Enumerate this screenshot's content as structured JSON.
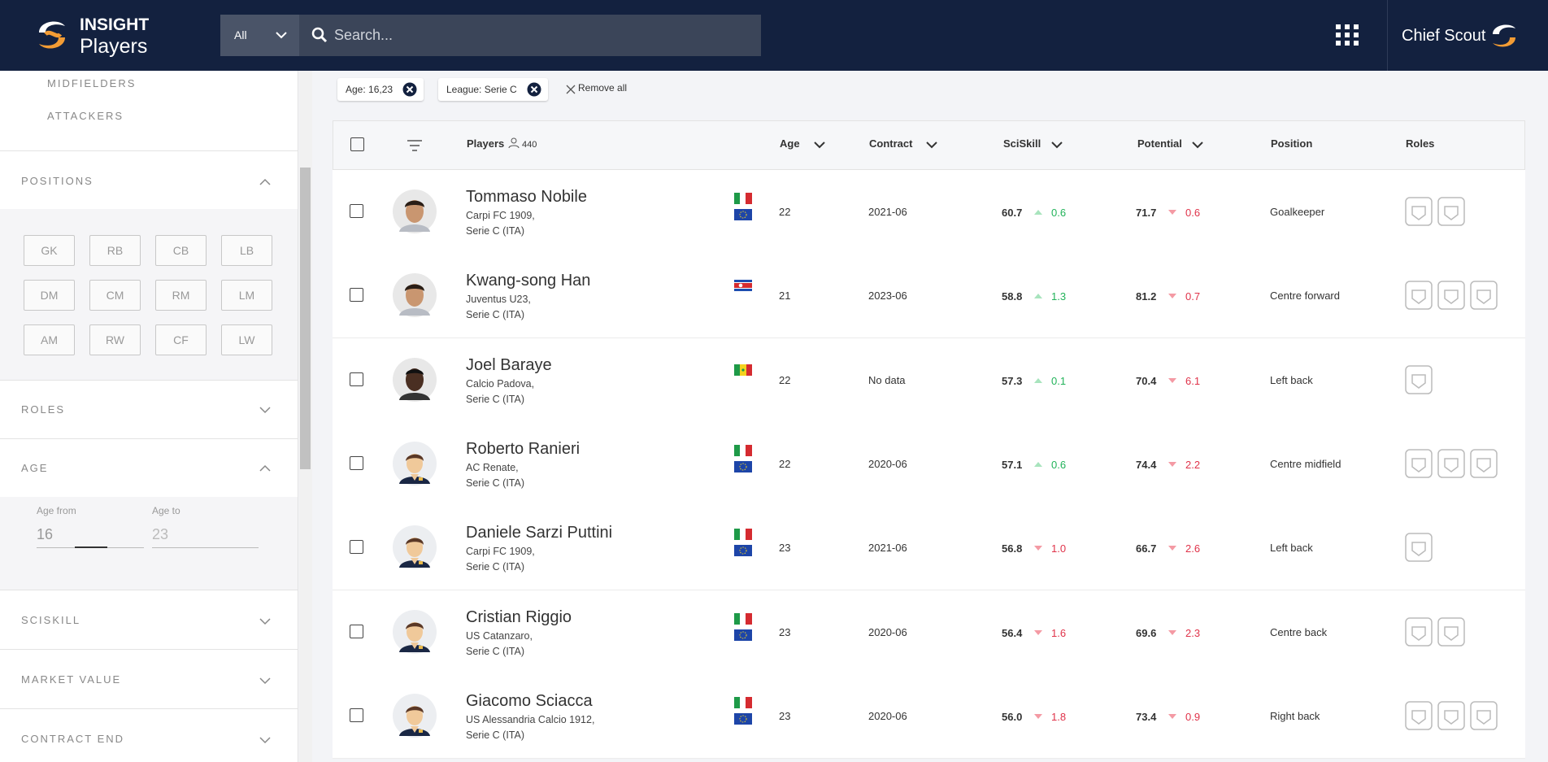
{
  "header": {
    "brand": "INSIGHT",
    "product": "Players",
    "scope": "All",
    "search_placeholder": "Search...",
    "user": "Chief Scout"
  },
  "sidebar": {
    "items": [
      "MIDFIELDERS",
      "ATTACKERS"
    ],
    "positions": {
      "title": "POSITIONS",
      "buttons": [
        "GK",
        "RB",
        "CB",
        "LB",
        "DM",
        "CM",
        "RM",
        "LM",
        "AM",
        "RW",
        "CF",
        "LW"
      ]
    },
    "roles": {
      "title": "ROLES"
    },
    "age": {
      "title": "AGE",
      "from_label": "Age from",
      "to_label": "Age to",
      "from": "16",
      "to": "23"
    },
    "sections": [
      "SCISKILL",
      "MARKET VALUE",
      "CONTRACT END"
    ]
  },
  "filters": {
    "chips": [
      "Age: 16,23",
      "League: Serie C"
    ],
    "remove": "Remove all"
  },
  "table": {
    "headers": {
      "players": "Players",
      "count": "440",
      "age": "Age",
      "contract": "Contract",
      "sciskill": "SciSkill",
      "potential": "Potential",
      "position": "Position",
      "roles": "Roles"
    },
    "rows": [
      {
        "name": "Tommaso Nobile",
        "club": "Carpi FC 1909,",
        "league": "Serie C (ITA)",
        "flags": [
          "it",
          "eu"
        ],
        "avatar": "photo",
        "age": "22",
        "contract": "2021-06",
        "sciskill": "60.7",
        "sciskill_change": "0.6",
        "sciskill_trend": "up",
        "potential": "71.7",
        "potential_change": "0.6",
        "potential_trend": "down",
        "position": "Goalkeeper",
        "role_icons": 2
      },
      {
        "name": "Kwang-song Han",
        "club": "Juventus U23,",
        "league": "Serie C (ITA)",
        "flags": [
          "kp"
        ],
        "avatar": "photo",
        "age": "21",
        "contract": "2023-06",
        "sciskill": "58.8",
        "sciskill_change": "1.3",
        "sciskill_trend": "up",
        "potential": "81.2",
        "potential_change": "0.7",
        "potential_trend": "down",
        "position": "Centre forward",
        "role_icons": 3
      },
      {
        "name": "Joel Baraye",
        "club": "Calcio Padova,",
        "league": "Serie C (ITA)",
        "flags": [
          "sn"
        ],
        "avatar": "photo-dark",
        "age": "22",
        "contract": "No data",
        "sciskill": "57.3",
        "sciskill_change": "0.1",
        "sciskill_trend": "up",
        "potential": "70.4",
        "potential_change": "6.1",
        "potential_trend": "down",
        "position": "Left back",
        "role_icons": 1
      },
      {
        "name": "Roberto Ranieri",
        "club": "AC Renate,",
        "league": "Serie C (ITA)",
        "flags": [
          "it",
          "eu"
        ],
        "avatar": "default",
        "age": "22",
        "contract": "2020-06",
        "sciskill": "57.1",
        "sciskill_change": "0.6",
        "sciskill_trend": "up",
        "potential": "74.4",
        "potential_change": "2.2",
        "potential_trend": "down",
        "position": "Centre midfield",
        "role_icons": 3
      },
      {
        "name": "Daniele Sarzi Puttini",
        "club": "Carpi FC 1909,",
        "league": "Serie C (ITA)",
        "flags": [
          "it",
          "eu"
        ],
        "avatar": "default",
        "age": "23",
        "contract": "2021-06",
        "sciskill": "56.8",
        "sciskill_change": "1.0",
        "sciskill_trend": "down",
        "potential": "66.7",
        "potential_change": "2.6",
        "potential_trend": "down",
        "position": "Left back",
        "role_icons": 1
      },
      {
        "name": "Cristian Riggio",
        "club": "US Catanzaro,",
        "league": "Serie C (ITA)",
        "flags": [
          "it",
          "eu"
        ],
        "avatar": "default",
        "age": "23",
        "contract": "2020-06",
        "sciskill": "56.4",
        "sciskill_change": "1.6",
        "sciskill_trend": "down",
        "potential": "69.6",
        "potential_change": "2.3",
        "potential_trend": "down",
        "position": "Centre back",
        "role_icons": 2
      },
      {
        "name": "Giacomo Sciacca",
        "club": "US Alessandria Calcio 1912,",
        "league": "Serie C (ITA)",
        "flags": [
          "it",
          "eu"
        ],
        "avatar": "default",
        "age": "23",
        "contract": "2020-06",
        "sciskill": "56.0",
        "sciskill_change": "1.8",
        "sciskill_trend": "down",
        "potential": "73.4",
        "potential_change": "0.9",
        "potential_trend": "down",
        "position": "Right back",
        "role_icons": 3
      }
    ]
  }
}
